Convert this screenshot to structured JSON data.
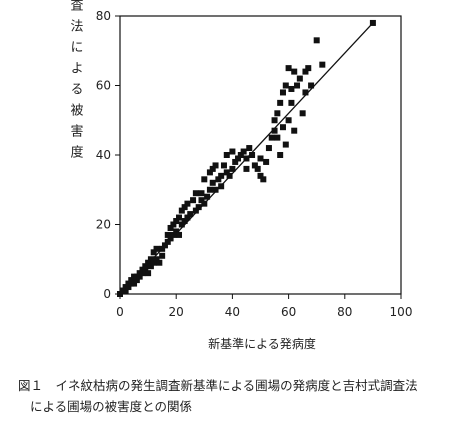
{
  "chart_data": {
    "type": "scatter",
    "y_label": "吉村式調査法による被害度",
    "x_label": "新基準による発病度",
    "caption": [
      "図１　イネ紋枯病の発生調査新基準による圃場の発病度と吉村式調査法",
      "による圃場の被害度との関係"
    ],
    "xlim": [
      0,
      100
    ],
    "ylim": [
      0,
      80
    ],
    "xticks": [
      0,
      20,
      40,
      60,
      80,
      100
    ],
    "yticks": [
      0,
      20,
      40,
      60,
      80
    ],
    "color": "#111111",
    "x": [
      0,
      1,
      2,
      2,
      3,
      3,
      4,
      4,
      5,
      5,
      6,
      6,
      7,
      7,
      8,
      8,
      9,
      9,
      10,
      10,
      11,
      11,
      12,
      12,
      13,
      13,
      14,
      15,
      15,
      16,
      17,
      17,
      18,
      18,
      19,
      19,
      20,
      20,
      21,
      21,
      22,
      22,
      23,
      23,
      24,
      24,
      25,
      26,
      27,
      27,
      28,
      29,
      29,
      30,
      30,
      31,
      32,
      32,
      33,
      33,
      34,
      34,
      35,
      36,
      36,
      37,
      38,
      38,
      39,
      40,
      40,
      41,
      42,
      43,
      44,
      45,
      45,
      46,
      47,
      48,
      49,
      50,
      50,
      51,
      52,
      53,
      54,
      55,
      55,
      56,
      56,
      57,
      57,
      58,
      58,
      59,
      59,
      60,
      60,
      61,
      61,
      62,
      62,
      63,
      64,
      65,
      66,
      66,
      67,
      68,
      70,
      72,
      90
    ],
    "y": [
      0,
      1,
      1,
      2,
      2,
      3,
      3,
      4,
      3,
      5,
      4,
      5,
      5,
      6,
      6,
      7,
      7,
      8,
      6,
      9,
      8,
      10,
      9,
      12,
      10,
      13,
      9,
      11,
      13,
      14,
      15,
      17,
      19,
      16,
      20,
      17,
      21,
      18,
      22,
      17,
      24,
      20,
      25,
      21,
      26,
      22,
      23,
      27,
      24,
      29,
      25,
      27,
      29,
      26,
      33,
      28,
      30,
      35,
      36,
      32,
      30,
      37,
      33,
      31,
      34,
      37,
      40,
      35,
      34,
      41,
      36,
      38,
      39,
      40,
      41,
      39,
      36,
      42,
      40,
      37,
      36,
      39,
      34,
      33,
      38,
      42,
      45,
      50,
      47,
      52,
      45,
      40,
      55,
      58,
      48,
      60,
      43,
      65,
      50,
      55,
      59,
      64,
      47,
      60,
      62,
      52,
      58,
      64,
      65,
      60,
      73,
      66,
      78
    ],
    "fit_line": {
      "x": [
        0,
        90
      ],
      "y": [
        0,
        78
      ]
    }
  }
}
